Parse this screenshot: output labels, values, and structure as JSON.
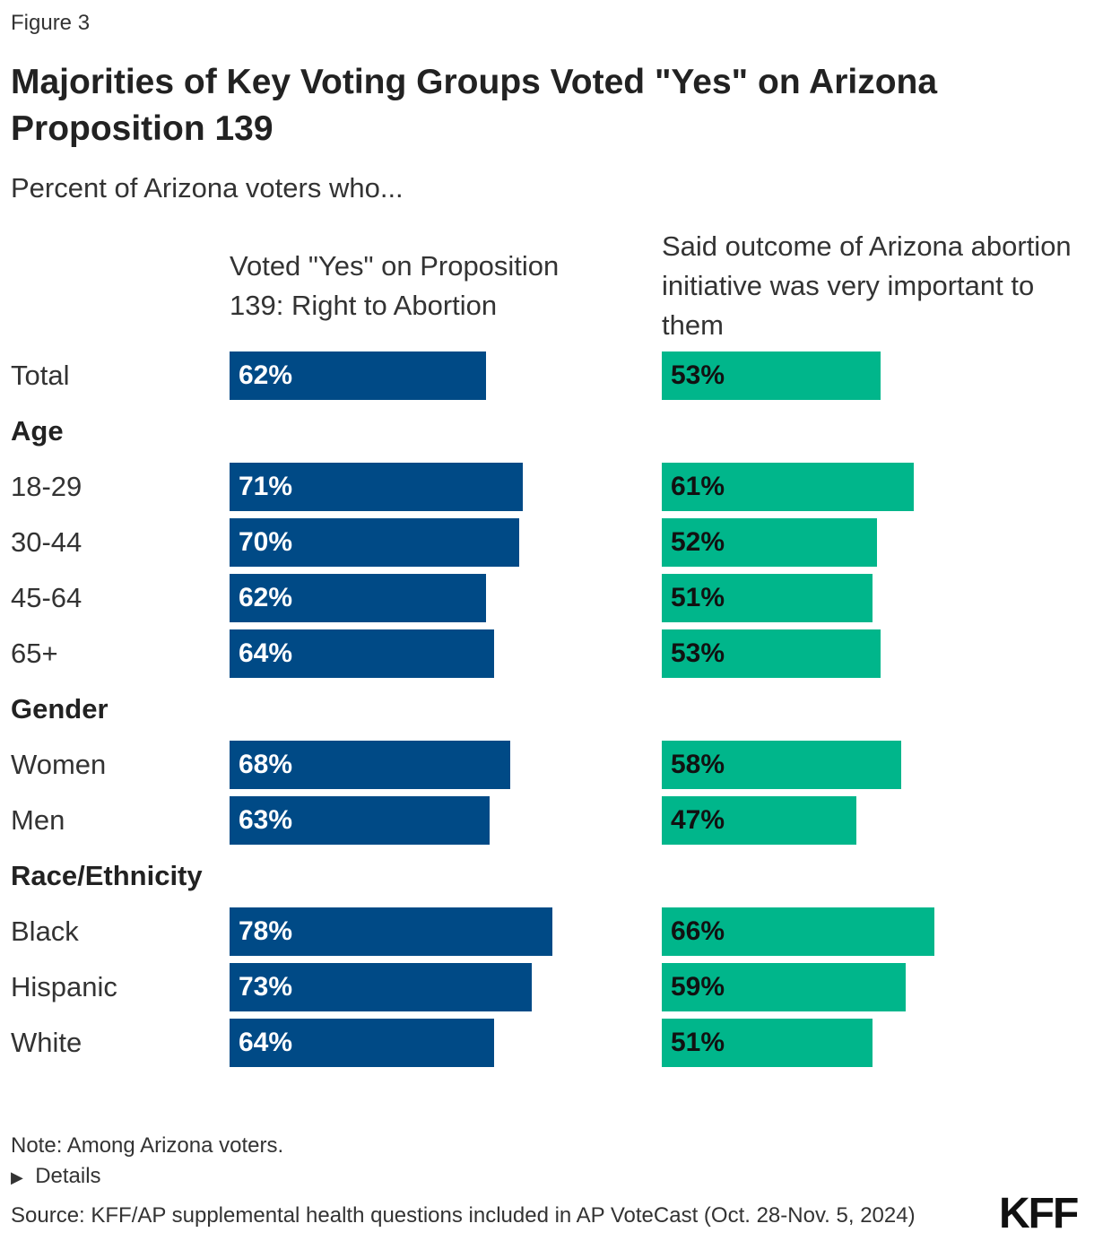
{
  "figure_label": "Figure 3",
  "footer": {
    "note": "Note: Among Arizona voters.",
    "details": "Details",
    "source": "Source: KFF/AP supplemental health questions included in AP VoteCast (Oct. 28-Nov. 5, 2024)",
    "logo": "KFF"
  },
  "chart_data": {
    "type": "bar",
    "orientation": "horizontal",
    "title": "Majorities of Key Voting Groups Voted \"Yes\" on Arizona Proposition 139",
    "subtitle": "Percent of Arizona voters who...",
    "rows": [
      {
        "label": "Total",
        "kind": "item"
      },
      {
        "label": "Age",
        "kind": "group"
      },
      {
        "label": "18-29",
        "kind": "item"
      },
      {
        "label": "30-44",
        "kind": "item"
      },
      {
        "label": "45-64",
        "kind": "item"
      },
      {
        "label": "65+",
        "kind": "item"
      },
      {
        "label": "Gender",
        "kind": "group"
      },
      {
        "label": "Women",
        "kind": "item"
      },
      {
        "label": "Men",
        "kind": "item"
      },
      {
        "label": "Race/Ethnicity",
        "kind": "group"
      },
      {
        "label": "Black",
        "kind": "item"
      },
      {
        "label": "Hispanic",
        "kind": "item"
      },
      {
        "label": "White",
        "kind": "item"
      }
    ],
    "categories": [
      "Total",
      "18-29",
      "30-44",
      "45-64",
      "65+",
      "Women",
      "Men",
      "Black",
      "Hispanic",
      "White"
    ],
    "series": [
      {
        "name": "Voted \"Yes\" on Proposition 139: Right to Abortion",
        "color": "#004a86",
        "label_color": "#ffffff",
        "values": [
          62,
          71,
          70,
          62,
          64,
          68,
          63,
          78,
          73,
          64
        ]
      },
      {
        "name": "Said outcome of Arizona abortion initiative was very important to them",
        "color": "#00b68b",
        "label_color": "#111111",
        "values": [
          53,
          61,
          52,
          51,
          53,
          58,
          47,
          66,
          59,
          51
        ]
      }
    ],
    "value_suffix": "%",
    "xlim": [
      0,
      100
    ],
    "grid": false,
    "legend": "column-headers"
  }
}
